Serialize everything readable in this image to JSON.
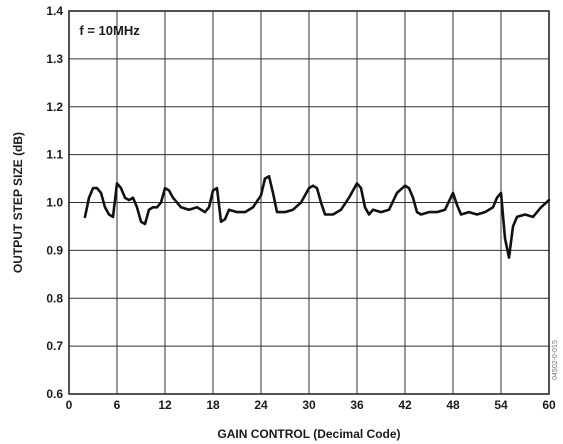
{
  "chart_data": {
    "type": "line",
    "xlabel": "GAIN CONTROL (Decimal Code)",
    "ylabel": "OUTPUT STEP SIZE (dB)",
    "xlim": [
      0,
      60
    ],
    "ylim": [
      0.6,
      1.4
    ],
    "xticks": [
      0,
      6,
      12,
      18,
      24,
      30,
      36,
      42,
      48,
      54,
      60
    ],
    "yticks": [
      0.6,
      0.7,
      0.8,
      0.9,
      1.0,
      1.1,
      1.2,
      1.3,
      1.4
    ],
    "ytick_labels": [
      "0.6",
      "0.7",
      "0.8",
      "0.9",
      "1.0",
      "1.1",
      "1.2",
      "1.3",
      "1.4"
    ],
    "grid": true,
    "annotation": "f = 10MHz",
    "figure_id": "04502-0-015",
    "series": [
      {
        "x": [
          2,
          2.5,
          3,
          3.5,
          4,
          4.5,
          5,
          5.5,
          6,
          6.5,
          7,
          7.5,
          8,
          8.5,
          9,
          9.5,
          10,
          10.5,
          11,
          11.5,
          12,
          12.5,
          13,
          14,
          15,
          16,
          17,
          17.5,
          18,
          18.5,
          19,
          19.5,
          20,
          21,
          22,
          23,
          24,
          24.5,
          25,
          25.5,
          26,
          27,
          28,
          29,
          30,
          30.5,
          31,
          31.5,
          32,
          33,
          34,
          35,
          36,
          36.5,
          37,
          37.5,
          38,
          39,
          40,
          41,
          42,
          42.5,
          43,
          43.5,
          44,
          45,
          46,
          47,
          48,
          48.5,
          49,
          50,
          51,
          52,
          53,
          53.5,
          54,
          54.5,
          55,
          55.5,
          56,
          57,
          58,
          59,
          60
        ],
        "y": [
          0.97,
          1.01,
          1.03,
          1.03,
          1.02,
          0.99,
          0.975,
          0.97,
          1.04,
          1.03,
          1.01,
          1.005,
          1.01,
          0.99,
          0.96,
          0.955,
          0.985,
          0.99,
          0.99,
          1.0,
          1.03,
          1.025,
          1.01,
          0.99,
          0.985,
          0.99,
          0.98,
          0.99,
          1.025,
          1.03,
          0.96,
          0.965,
          0.985,
          0.98,
          0.98,
          0.99,
          1.015,
          1.05,
          1.055,
          1.02,
          0.98,
          0.98,
          0.985,
          1.0,
          1.03,
          1.035,
          1.03,
          1.0,
          0.975,
          0.975,
          0.985,
          1.01,
          1.04,
          1.03,
          0.99,
          0.975,
          0.985,
          0.98,
          0.985,
          1.02,
          1.035,
          1.03,
          1.01,
          0.98,
          0.975,
          0.98,
          0.98,
          0.985,
          1.02,
          0.995,
          0.975,
          0.98,
          0.975,
          0.98,
          0.99,
          1.01,
          1.02,
          0.925,
          0.885,
          0.95,
          0.97,
          0.975,
          0.97,
          0.99,
          1.005
        ]
      }
    ]
  }
}
